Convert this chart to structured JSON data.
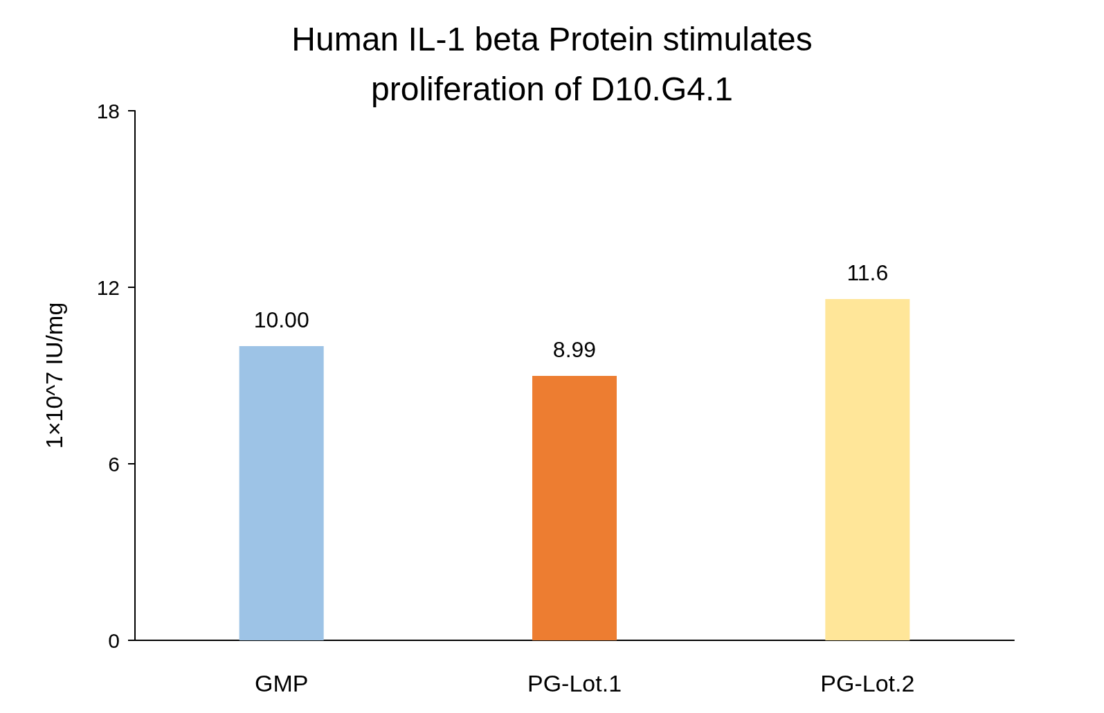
{
  "chart_data": {
    "type": "bar",
    "title": "Human IL-1 beta Protein stimulates\nproliferation of D10.G4.1",
    "ylabel": "1×10^7 IU/mg",
    "categories": [
      "GMP",
      "PG-Lot.1",
      "PG-Lot.2"
    ],
    "values": [
      10.0,
      8.99,
      11.6
    ],
    "value_labels": [
      "10.00",
      "8.99",
      "11.6"
    ],
    "colors": [
      "#9dc3e6",
      "#ed7d31",
      "#ffe699"
    ],
    "ylim": [
      0,
      18
    ],
    "yticks": [
      0,
      6,
      12,
      18
    ]
  }
}
